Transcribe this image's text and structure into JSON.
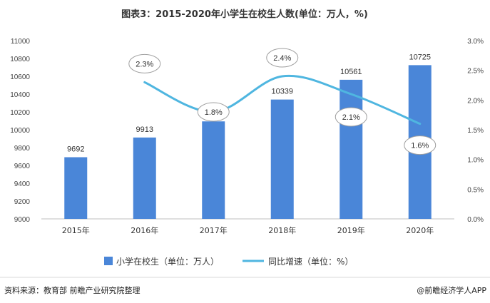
{
  "chart_data": {
    "type": "bar",
    "title": "图表3：2015-2020年小学生在校生人数(单位：万人，%)",
    "categories": [
      "2015年",
      "2016年",
      "2017年",
      "2018年",
      "2019年",
      "2020年"
    ],
    "series": [
      {
        "name": "小学在校生（单位：万人）",
        "type": "bar",
        "axis": "left",
        "values": [
          9692,
          9913,
          10094,
          10339,
          10561,
          10725
        ],
        "labels": [
          "9692",
          "9913",
          "10094",
          "10339",
          "10561",
          "10725"
        ],
        "color": "#4a86d8"
      },
      {
        "name": "同比增速（单位：%）",
        "type": "line",
        "axis": "right",
        "values": [
          null,
          2.3,
          1.8,
          2.4,
          2.1,
          1.6
        ],
        "labels": [
          "",
          "2.3%",
          "1.8%",
          "2.4%",
          "2.1%",
          "1.6%"
        ],
        "color": "#4fb6e0",
        "smooth": true
      }
    ],
    "y_left": {
      "ylim": [
        9000,
        11000
      ],
      "ticks": [
        "9000",
        "9200",
        "9400",
        "9600",
        "9800",
        "10000",
        "10200",
        "10400",
        "10600",
        "10800",
        "11000"
      ]
    },
    "y_right": {
      "ylim": [
        0,
        3.0
      ],
      "ticks": [
        "0.0%",
        "0.5%",
        "1.0%",
        "1.5%",
        "2.0%",
        "2.5%",
        "3.0%"
      ]
    },
    "grid": false,
    "legend_position": "bottom"
  },
  "footer": {
    "source": "资料来源：教育部 前瞻产业研究院整理",
    "brand": "@前瞻经济学人APP"
  },
  "colors": {
    "bar": "#4a86d8",
    "line": "#4fb6e0",
    "axis": "#bfbfbf"
  }
}
